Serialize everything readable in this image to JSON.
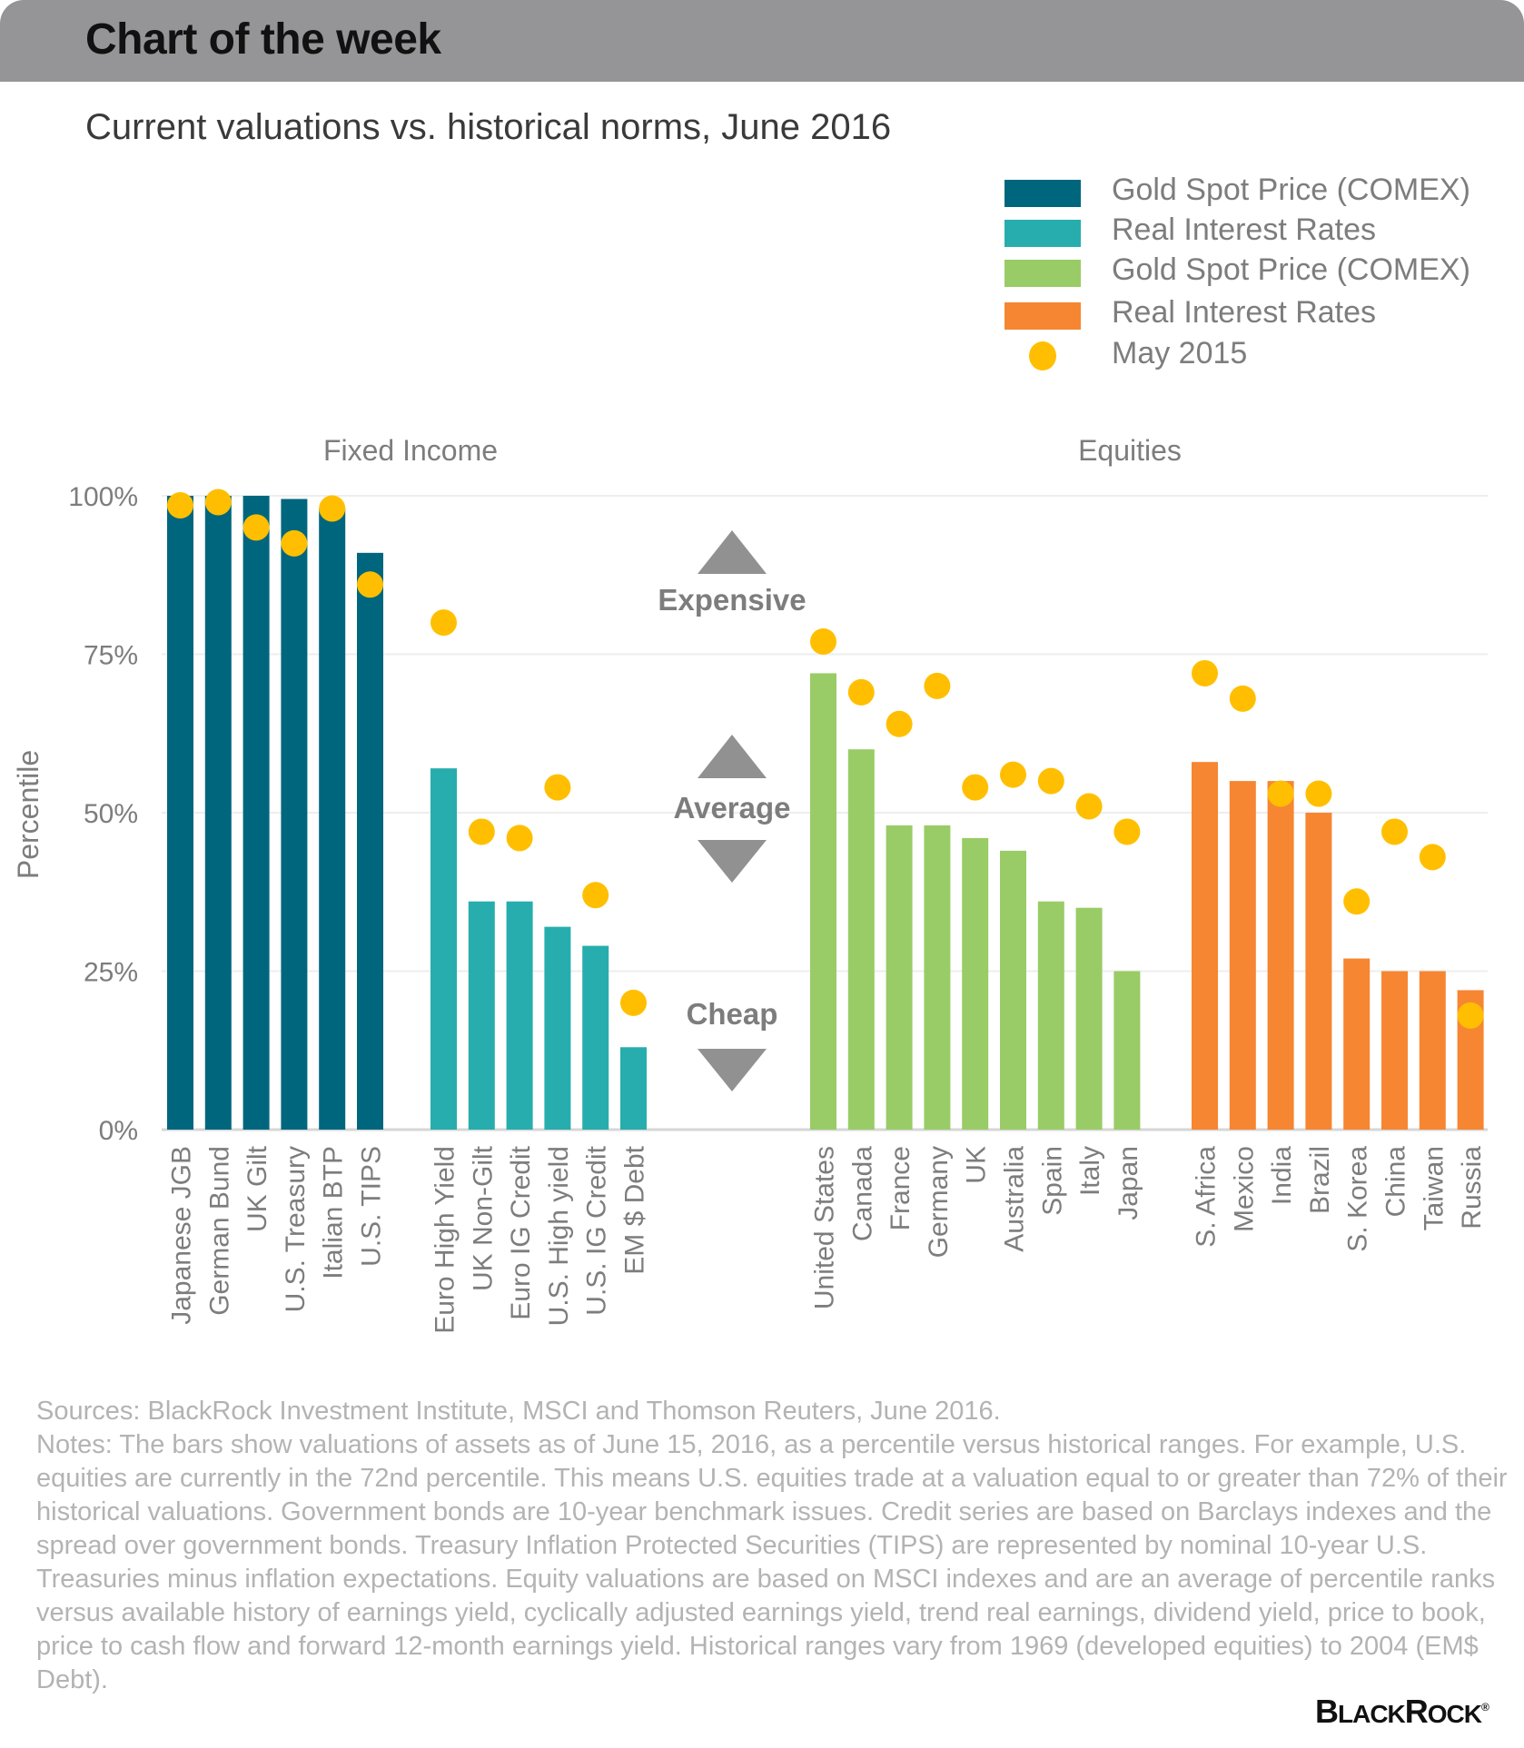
{
  "header": {
    "title": "Chart of the week"
  },
  "footer": {
    "sources": "Sources: BlackRock Investment Institute, MSCI and Thomson Reuters, June 2016.",
    "notes": "Notes: The bars show valuations of assets as of June 15, 2016, as a percentile versus historical ranges. For example, U.S. equities are currently in the 72nd percentile. This means U.S. equities trade at a valuation equal to or greater than 72% of their historical valuations. Government bonds are 10-year benchmark issues. Credit series are based on Barclays indexes and the spread over government bonds. Treasury Inflation Protected Securities (TIPS) are represented by nominal 10-year U.S. Treasuries minus inflation expectations. Equity valuations are based on MSCI indexes and are an average of percentile ranks versus available history of earnings yield, cyclically adjusted earnings yield, trend real earnings, dividend yield, price to book, price to cash flow and forward 12-month earnings yield. Historical ranges vary from 1969 (developed equities) to 2004 (EM$ Debt).",
    "logo": {
      "first": "B",
      "rest1": "LACK",
      "second": "R",
      "rest2": "OCK",
      "mark": "®"
    }
  },
  "chart_data": {
    "type": "bar",
    "title": "Current valuations vs. historical norms, June 2016",
    "xlabel": "",
    "ylabel": "Percentile",
    "ylim": [
      0,
      100
    ],
    "yticks": [
      0,
      25,
      50,
      75,
      100
    ],
    "ytick_labels": [
      "0%",
      "25%",
      "50%",
      "75%",
      "100%"
    ],
    "grid": true,
    "legend_position": "top-right",
    "legend": [
      {
        "label": "Gold Spot Price (COMEX)",
        "color": "#00667E",
        "kind": "bar"
      },
      {
        "label": "Real Interest Rates",
        "color": "#27ADAD",
        "kind": "bar"
      },
      {
        "label": "Gold Spot Price (COMEX)",
        "color": "#99CC66",
        "kind": "bar"
      },
      {
        "label": "Real Interest Rates",
        "color": "#F68631",
        "kind": "bar"
      },
      {
        "label": "May 2015",
        "color": "#FFBF00",
        "kind": "dot"
      }
    ],
    "section_labels": [
      "Fixed Income",
      "Equities"
    ],
    "annotations": {
      "expensive": "Expensive",
      "average": "Average",
      "cheap": "Cheap"
    },
    "groups": [
      {
        "section": "Fixed Income",
        "color": "#00667E",
        "categories": [
          "Japanese JGB",
          "German Bund",
          "UK Gilt",
          "U.S. Treasury",
          "Italian BTP",
          "U.S. TIPS"
        ],
        "values": [
          100,
          100,
          100,
          99.5,
          98,
          91
        ],
        "may_2015": [
          98.5,
          99,
          95,
          92.5,
          98,
          86
        ]
      },
      {
        "section": "Fixed Income",
        "color": "#27ADAD",
        "categories": [
          "Euro High Yield",
          "UK Non-Gilt",
          "Euro IG Credit",
          "U.S. High yield",
          "U.S. IG Credit",
          "EM $ Debt"
        ],
        "values": [
          57,
          36,
          36,
          32,
          29,
          13
        ],
        "may_2015": [
          80,
          47,
          46,
          54,
          37,
          20
        ]
      },
      {
        "section": "Equities",
        "color": "#99CC66",
        "categories": [
          "United States",
          "Canada",
          "France",
          "Germany",
          "UK",
          "Australia",
          "Spain",
          "Italy",
          "Japan"
        ],
        "values": [
          72,
          60,
          48,
          48,
          46,
          44,
          36,
          35,
          25
        ],
        "may_2015": [
          77,
          69,
          64,
          70,
          54,
          56,
          55,
          51,
          47
        ]
      },
      {
        "section": "Equities",
        "color": "#F68631",
        "categories": [
          "S. Africa",
          "Mexico",
          "India",
          "Brazil",
          "S. Korea",
          "China",
          "Taiwan",
          "Russia"
        ],
        "values": [
          58,
          55,
          55,
          50,
          27,
          25,
          25,
          22
        ],
        "may_2015": [
          72,
          68,
          53,
          53,
          36,
          47,
          43,
          18
        ]
      }
    ]
  }
}
